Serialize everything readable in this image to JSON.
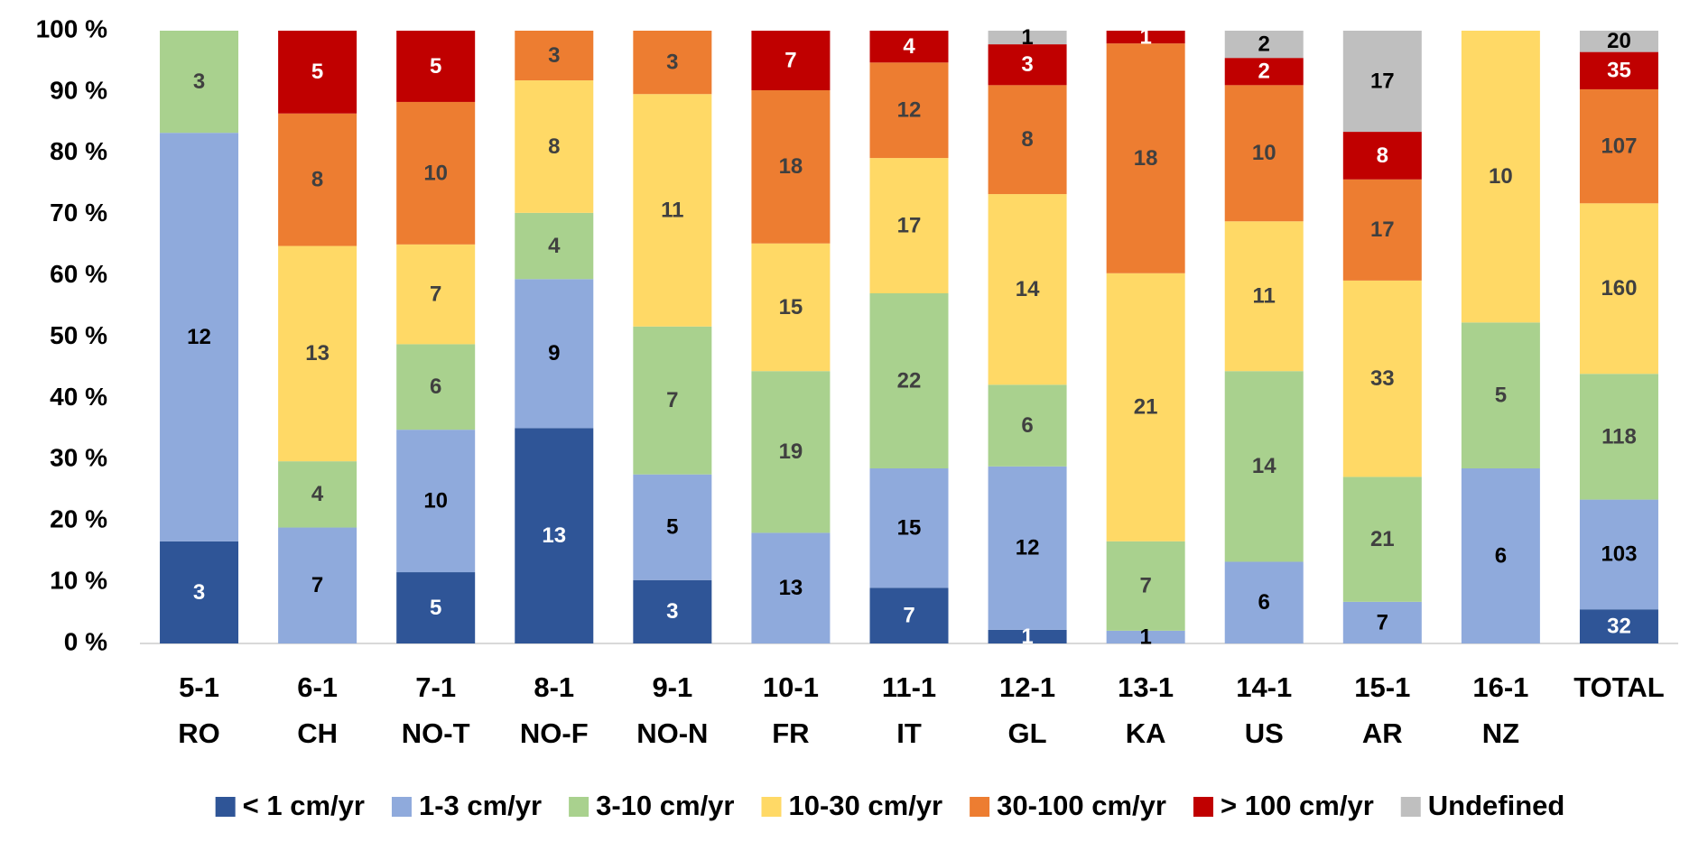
{
  "chart_data": {
    "type": "bar",
    "stacking": "percent",
    "categories": [
      [
        "5-1",
        "RO"
      ],
      [
        "6-1",
        "CH"
      ],
      [
        "7-1",
        "NO-T"
      ],
      [
        "8-1",
        "NO-F"
      ],
      [
        "9-1",
        "NO-N"
      ],
      [
        "10-1",
        "FR"
      ],
      [
        "11-1",
        "IT"
      ],
      [
        "12-1",
        "GL"
      ],
      [
        "13-1",
        "KA"
      ],
      [
        "14-1",
        "US"
      ],
      [
        "15-1",
        "AR"
      ],
      [
        "16-1",
        "NZ"
      ],
      [
        "TOTAL"
      ]
    ],
    "series": [
      {
        "name": "< 1 cm/yr",
        "color": "#2f5597",
        "label_color": "#ffffff",
        "values": [
          3,
          null,
          5,
          13,
          3,
          null,
          7,
          1,
          null,
          null,
          null,
          null,
          32
        ]
      },
      {
        "name": "1-3 cm/yr",
        "color": "#8faadc",
        "label_color": "#000000",
        "values": [
          12,
          7,
          10,
          9,
          5,
          13,
          15,
          12,
          1,
          6,
          7,
          6,
          103
        ]
      },
      {
        "name": "3-10 cm/yr",
        "color": "#a9d18e",
        "label_color": "#404040",
        "values": [
          3,
          4,
          6,
          4,
          7,
          19,
          22,
          6,
          7,
          14,
          21,
          5,
          118
        ]
      },
      {
        "name": "10-30 cm/yr",
        "color": "#ffd966",
        "label_color": "#404040",
        "values": [
          null,
          13,
          7,
          8,
          11,
          15,
          17,
          14,
          21,
          11,
          33,
          10,
          160
        ]
      },
      {
        "name": "30-100 cm/yr",
        "color": "#ed7d31",
        "label_color": "#404040",
        "values": [
          null,
          8,
          10,
          3,
          3,
          18,
          12,
          8,
          18,
          10,
          17,
          null,
          107
        ]
      },
      {
        "name": "> 100 cm/yr",
        "color": "#c00000",
        "label_color": "#ffffff",
        "values": [
          null,
          5,
          5,
          null,
          null,
          7,
          4,
          3,
          1,
          2,
          8,
          null,
          35
        ]
      },
      {
        "name": "Undefined",
        "color": "#bfbfbf",
        "label_color": "#000000",
        "values": [
          null,
          null,
          null,
          null,
          null,
          null,
          null,
          1,
          null,
          2,
          17,
          null,
          20
        ]
      }
    ],
    "ylim": [
      0,
      100
    ],
    "yticks": [
      {
        "value": 0,
        "label": "0 %"
      },
      {
        "value": 10,
        "label": "10 %"
      },
      {
        "value": 20,
        "label": "20 %"
      },
      {
        "value": 30,
        "label": "30 %"
      },
      {
        "value": 40,
        "label": "40 %"
      },
      {
        "value": 50,
        "label": "50 %"
      },
      {
        "value": 60,
        "label": "60 %"
      },
      {
        "value": 70,
        "label": "70 %"
      },
      {
        "value": 80,
        "label": "80 %"
      },
      {
        "value": 90,
        "label": "90 %"
      },
      {
        "value": 100,
        "label": "100 %"
      }
    ],
    "grid": false,
    "legend": "bottom"
  }
}
